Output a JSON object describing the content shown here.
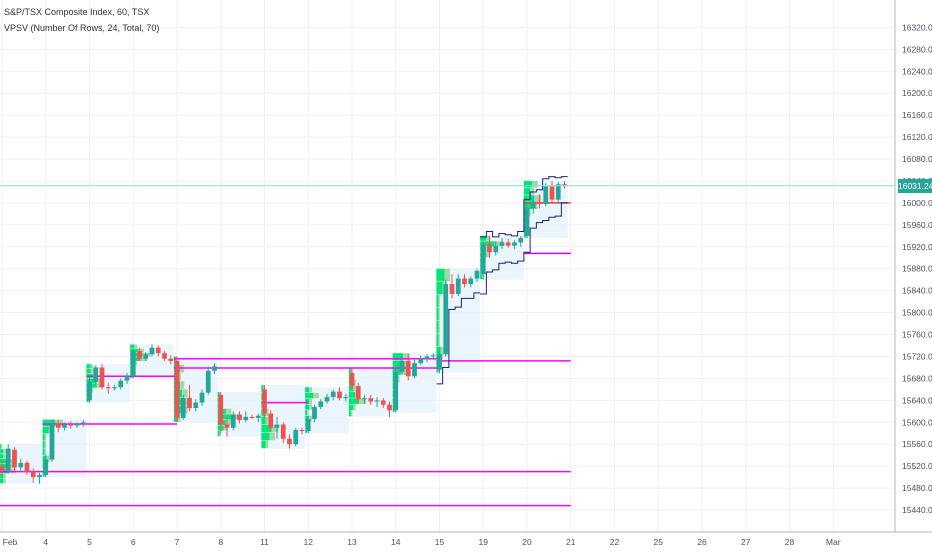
{
  "header": {
    "symbol_line": "S&P/TSX Composite Index, 60, TSX",
    "indicator_line": "VPSV (Number Of Rows, 24, Total, 70)"
  },
  "price_badge": {
    "text": "16031.24",
    "value": 16031.24,
    "color": "#26a69a"
  },
  "colors": {
    "up": "#26a69a",
    "down": "#ef5350",
    "vp_up": "#00e676",
    "vp_down": "#a5d6a7",
    "vp_box": "#e3f2fd",
    "magenta": "#ff00ff",
    "grid": "#eef1f5",
    "navy": "#1a237e"
  },
  "chart_data": {
    "type": "candlestick",
    "title": "S&P/TSX Composite Index, 60, TSX",
    "ylim": [
      15400,
      16370
    ],
    "y_ticks": [
      15440,
      15480,
      15520,
      15560,
      15600,
      15640,
      15680,
      15720,
      15760,
      15800,
      15840,
      15880,
      15920,
      15960,
      16000,
      16040,
      16080,
      16120,
      16160,
      16200,
      16240,
      16280,
      16320
    ],
    "x_ticks": [
      {
        "label": "Feb",
        "i": 0
      },
      {
        "label": "4",
        "i": 7
      },
      {
        "label": "5",
        "i": 14
      },
      {
        "label": "6",
        "i": 21
      },
      {
        "label": "7",
        "i": 28
      },
      {
        "label": "8",
        "i": 35
      },
      {
        "label": "11",
        "i": 42
      },
      {
        "label": "12",
        "i": 49
      },
      {
        "label": "13",
        "i": 56
      },
      {
        "label": "14",
        "i": 63
      },
      {
        "label": "15",
        "i": 70
      },
      {
        "label": "19",
        "i": 77
      },
      {
        "label": "20",
        "i": 84
      },
      {
        "label": "21",
        "i": 91
      },
      {
        "label": "22",
        "i": 98
      },
      {
        "label": "25",
        "i": 105
      },
      {
        "label": "26",
        "i": 112
      },
      {
        "label": "27",
        "i": 119
      },
      {
        "label": "28",
        "i": 126
      },
      {
        "label": "Mar",
        "i": 133
      }
    ],
    "candles": [
      [
        15520,
        15530,
        15505,
        15512
      ],
      [
        15512,
        15560,
        15508,
        15552
      ],
      [
        15550,
        15555,
        15512,
        15518
      ],
      [
        15518,
        15534,
        15510,
        15526
      ],
      [
        15526,
        15530,
        15504,
        15510
      ],
      [
        15510,
        15516,
        15490,
        15500
      ],
      [
        15500,
        15508,
        15488,
        15504
      ],
      [
        15504,
        15540,
        15500,
        15532
      ],
      [
        15532,
        15605,
        15528,
        15598
      ],
      [
        15598,
        15604,
        15582,
        15590
      ],
      [
        15590,
        15600,
        15585,
        15596
      ],
      [
        15596,
        15602,
        15588,
        15594
      ],
      [
        15594,
        15600,
        15590,
        15598
      ],
      [
        15598,
        15604,
        15592,
        15600
      ],
      [
        15640,
        15682,
        15636,
        15674
      ],
      [
        15674,
        15704,
        15668,
        15700
      ],
      [
        15700,
        15706,
        15660,
        15664
      ],
      [
        15664,
        15672,
        15652,
        15662
      ],
      [
        15662,
        15668,
        15658,
        15664
      ],
      [
        15664,
        15680,
        15660,
        15676
      ],
      [
        15676,
        15690,
        15670,
        15684
      ],
      [
        15684,
        15736,
        15680,
        15730
      ],
      [
        15730,
        15736,
        15712,
        15716
      ],
      [
        15716,
        15728,
        15712,
        15724
      ],
      [
        15724,
        15742,
        15720,
        15736
      ],
      [
        15736,
        15740,
        15720,
        15726
      ],
      [
        15726,
        15730,
        15712,
        15716
      ],
      [
        15716,
        15722,
        15706,
        15712
      ],
      [
        15712,
        15720,
        15600,
        15608
      ],
      [
        15608,
        15650,
        15604,
        15644
      ],
      [
        15644,
        15668,
        15620,
        15626
      ],
      [
        15626,
        15642,
        15620,
        15636
      ],
      [
        15636,
        15660,
        15630,
        15654
      ],
      [
        15654,
        15702,
        15650,
        15694
      ],
      [
        15694,
        15708,
        15688,
        15702
      ],
      [
        15650,
        15655,
        15580,
        15596
      ],
      [
        15596,
        15610,
        15574,
        15590
      ],
      [
        15590,
        15620,
        15586,
        15614
      ],
      [
        15614,
        15620,
        15598,
        15604
      ],
      [
        15604,
        15620,
        15600,
        15610
      ],
      [
        15610,
        15614,
        15606,
        15608
      ],
      [
        15608,
        15616,
        15600,
        15612
      ],
      [
        15660,
        15668,
        15610,
        15616
      ],
      [
        15616,
        15622,
        15584,
        15590
      ],
      [
        15590,
        15610,
        15570,
        15596
      ],
      [
        15596,
        15600,
        15562,
        15570
      ],
      [
        15570,
        15578,
        15552,
        15560
      ],
      [
        15560,
        15590,
        15556,
        15586
      ],
      [
        15586,
        15590,
        15578,
        15584
      ],
      [
        15584,
        15612,
        15580,
        15606
      ],
      [
        15606,
        15632,
        15600,
        15628
      ],
      [
        15628,
        15642,
        15624,
        15638
      ],
      [
        15638,
        15652,
        15634,
        15646
      ],
      [
        15646,
        15660,
        15640,
        15656
      ],
      [
        15656,
        15664,
        15640,
        15644
      ],
      [
        15644,
        15652,
        15638,
        15646
      ],
      [
        15690,
        15700,
        15660,
        15666
      ],
      [
        15666,
        15672,
        15638,
        15642
      ],
      [
        15642,
        15650,
        15634,
        15644
      ],
      [
        15644,
        15650,
        15632,
        15638
      ],
      [
        15638,
        15646,
        15628,
        15640
      ],
      [
        15640,
        15644,
        15626,
        15632
      ],
      [
        15632,
        15638,
        15610,
        15622
      ],
      [
        15622,
        15700,
        15618,
        15692
      ],
      [
        15692,
        15720,
        15688,
        15712
      ],
      [
        15712,
        15724,
        15676,
        15684
      ],
      [
        15684,
        15716,
        15680,
        15708
      ],
      [
        15708,
        15722,
        15704,
        15716
      ],
      [
        15716,
        15724,
        15710,
        15720
      ],
      [
        15720,
        15726,
        15716,
        15722
      ],
      [
        15696,
        15730,
        15690,
        15724
      ],
      [
        15724,
        15860,
        15720,
        15852
      ],
      [
        15852,
        15870,
        15826,
        15834
      ],
      [
        15834,
        15870,
        15830,
        15862
      ],
      [
        15862,
        15870,
        15846,
        15852
      ],
      [
        15852,
        15866,
        15846,
        15862
      ],
      [
        15862,
        15880,
        15856,
        15876
      ],
      [
        15870,
        15930,
        15860,
        15924
      ],
      [
        15924,
        15940,
        15900,
        15910
      ],
      [
        15910,
        15930,
        15904,
        15922
      ],
      [
        15922,
        15936,
        15916,
        15928
      ],
      [
        15928,
        15934,
        15918,
        15922
      ],
      [
        15922,
        15932,
        15916,
        15928
      ],
      [
        15928,
        15940,
        15920,
        15936
      ],
      [
        15940,
        15998,
        15936,
        15990
      ],
      [
        15990,
        16012,
        15980,
        16002
      ],
      [
        16002,
        16016,
        15990,
        15998
      ],
      [
        15998,
        16036,
        15994,
        16030
      ],
      [
        16030,
        16040,
        16000,
        16006
      ],
      [
        16006,
        16038,
        16002,
        16034
      ],
      [
        16034,
        16040,
        16026,
        16031
      ]
    ],
    "horizontal_levels": [
      {
        "y": 15716,
        "x_start": 28,
        "x_end": 70
      },
      {
        "y": 15699,
        "x_start": 28,
        "x_end": 70
      },
      {
        "y": 15684,
        "x_start": 14,
        "x_end": 28
      },
      {
        "y": 15636,
        "x_start": 42,
        "x_end": 49
      },
      {
        "y": 15597,
        "x_start": 7,
        "x_end": 28
      },
      {
        "y": 15510,
        "x_start": 0,
        "x_end": 91
      },
      {
        "y": 15448,
        "x_start": 0,
        "x_end": 91
      },
      {
        "y": 15712,
        "x_start": 70,
        "x_end": 91
      },
      {
        "y": 15908,
        "x_start": 84,
        "x_end": 91
      },
      {
        "y": 16000,
        "x_start": 84,
        "x_end": 91
      }
    ]
  }
}
